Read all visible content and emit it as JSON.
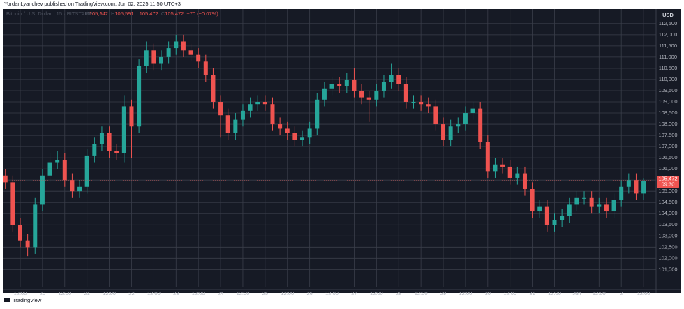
{
  "header": {
    "publisher": "YordanLyanchev published on TradingView.com, Jun 02, 2025 11:50 UTC+3",
    "brand": "TradingView"
  },
  "chart_data": {
    "type": "candlestick",
    "symbol": "Bitcoin / U.S. Dollar · 15 · BITSTAMP",
    "ohlc_legend": [
      {
        "key": "O",
        "value": "105,542"
      },
      {
        "key": "H",
        "value": "105,591"
      },
      {
        "key": "L",
        "value": "105,472"
      },
      {
        "key": "C",
        "value": "105,472"
      }
    ],
    "change": "−70 (−0.07%)",
    "currency": "USD",
    "last_price": {
      "value": 105472,
      "label": "105,472"
    },
    "countdown": "09:30",
    "up_color": "#26a69a",
    "down_color": "#ef5350",
    "grid": true,
    "ylim": [
      100700,
      113150
    ],
    "yticks": [
      {
        "value": 101500,
        "label": "101,500"
      },
      {
        "value": 102000,
        "label": "102,000"
      },
      {
        "value": 102500,
        "label": "102,500"
      },
      {
        "value": 103000,
        "label": "103,000"
      },
      {
        "value": 103500,
        "label": "103,500"
      },
      {
        "value": 104000,
        "label": "104,000"
      },
      {
        "value": 104500,
        "label": "104,500"
      },
      {
        "value": 105000,
        "label": "105,000"
      },
      {
        "value": 105500,
        "label": "105,500"
      },
      {
        "value": 106000,
        "label": "106,000"
      },
      {
        "value": 106500,
        "label": "106,500"
      },
      {
        "value": 107000,
        "label": "107,000"
      },
      {
        "value": 107500,
        "label": "107,500"
      },
      {
        "value": 108000,
        "label": "108,000"
      },
      {
        "value": 108500,
        "label": "108,500"
      },
      {
        "value": 109000,
        "label": "109,000"
      },
      {
        "value": 109500,
        "label": "109,500"
      },
      {
        "value": 110000,
        "label": "110,000"
      },
      {
        "value": 110500,
        "label": "110,500"
      },
      {
        "value": 111000,
        "label": "111,000"
      },
      {
        "value": 111500,
        "label": "111,500"
      },
      {
        "value": 112000,
        "label": "112,000"
      },
      {
        "value": 112500,
        "label": "112,500"
      }
    ],
    "x_axis_labels": [
      "12:00",
      "20",
      "12:00",
      "21",
      "12:00",
      "22",
      "12:00",
      "23",
      "12:00",
      "24",
      "12:00",
      "25",
      "12:00",
      "26",
      "12:00",
      "27",
      "12:00",
      "28",
      "12:00",
      "29",
      "12:00",
      "30",
      "12:00",
      "31",
      "12:00",
      "Jun",
      "12:00",
      "2",
      "12:00"
    ],
    "open": [
      105700,
      105400,
      103500,
      102800,
      102500,
      104400,
      105700,
      106300,
      106400,
      105500,
      105000,
      105200,
      106600,
      107100,
      107600,
      106800,
      106700,
      108800,
      107900,
      110600,
      111300,
      110700,
      111000,
      111400,
      111700,
      111300,
      111100,
      110800,
      110200,
      109000,
      108400,
      107600,
      108200,
      108600,
      108900,
      109000,
      108900,
      108000,
      107800,
      107600,
      107300,
      107400,
      107800,
      109100,
      109600,
      109800,
      109700,
      110000,
      109500,
      109200,
      109100,
      109500,
      109900,
      110200,
      109800,
      109000,
      109000,
      108900,
      108800,
      108000,
      107300,
      107900,
      108000,
      108500,
      108700,
      107200,
      105900,
      106200,
      106100,
      105600,
      105800,
      105100,
      104100,
      104300,
      103500,
      103700,
      103900,
      104400,
      104700,
      104700,
      104300,
      104400,
      104100,
      104600,
      105200,
      105500,
      104900
    ],
    "high": [
      106000,
      105700,
      103800,
      103100,
      104700,
      106000,
      106700,
      106800,
      106700,
      105800,
      105500,
      106900,
      107400,
      107900,
      107900,
      107100,
      109300,
      109100,
      110900,
      111700,
      111600,
      111300,
      111700,
      112000,
      112000,
      111600,
      111400,
      111100,
      110500,
      109300,
      108700,
      108500,
      108900,
      109200,
      109300,
      109300,
      109200,
      108300,
      108100,
      107900,
      107700,
      108100,
      109400,
      109900,
      110100,
      110100,
      110300,
      110500,
      109800,
      109500,
      109800,
      110200,
      110700,
      110500,
      110100,
      109300,
      109300,
      109200,
      109100,
      108300,
      108200,
      108300,
      108800,
      109000,
      109000,
      107500,
      106500,
      106500,
      106400,
      106100,
      106100,
      105400,
      104600,
      104600,
      104000,
      104200,
      104700,
      105000,
      105000,
      105000,
      104700,
      104700,
      104900,
      105500,
      105800,
      105800,
      105591
    ],
    "low": [
      105100,
      103200,
      102500,
      102100,
      102200,
      104100,
      105400,
      106000,
      105200,
      104700,
      104700,
      104900,
      106300,
      106800,
      106500,
      106400,
      106300,
      106500,
      107600,
      110300,
      110400,
      110400,
      110700,
      111100,
      111000,
      110800,
      110500,
      109900,
      108700,
      107400,
      107300,
      107300,
      107900,
      108300,
      108600,
      108600,
      107700,
      107500,
      107300,
      107000,
      107000,
      107100,
      107500,
      108800,
      109300,
      109400,
      109400,
      109200,
      108900,
      108100,
      108800,
      109200,
      109600,
      109500,
      108700,
      108700,
      108600,
      108500,
      107700,
      107000,
      107000,
      107600,
      107700,
      108200,
      106900,
      105600,
      105600,
      105800,
      105300,
      105300,
      104800,
      103800,
      103800,
      103200,
      103200,
      103400,
      103600,
      104100,
      104400,
      104000,
      104000,
      103800,
      103800,
      104300,
      104900,
      104600,
      104600
    ],
    "close": [
      105400,
      103500,
      102800,
      102500,
      104400,
      105700,
      106300,
      106400,
      105500,
      105000,
      105200,
      106600,
      107100,
      107600,
      106800,
      106700,
      108800,
      107900,
      110600,
      111300,
      110700,
      111000,
      111400,
      111700,
      111300,
      111100,
      110800,
      110200,
      109000,
      108400,
      107600,
      108200,
      108600,
      108900,
      109000,
      108900,
      108000,
      107800,
      107600,
      107300,
      107400,
      107800,
      109100,
      109600,
      109800,
      109700,
      110000,
      109500,
      109200,
      109100,
      109500,
      109900,
      110200,
      109800,
      109000,
      109000,
      108900,
      108800,
      108000,
      107300,
      107900,
      108000,
      108500,
      108700,
      107200,
      105900,
      106200,
      106100,
      105600,
      105800,
      105100,
      104100,
      104300,
      103500,
      103700,
      103900,
      104400,
      104700,
      104700,
      104300,
      104400,
      104100,
      104600,
      105200,
      105500,
      104900,
      105472
    ]
  }
}
